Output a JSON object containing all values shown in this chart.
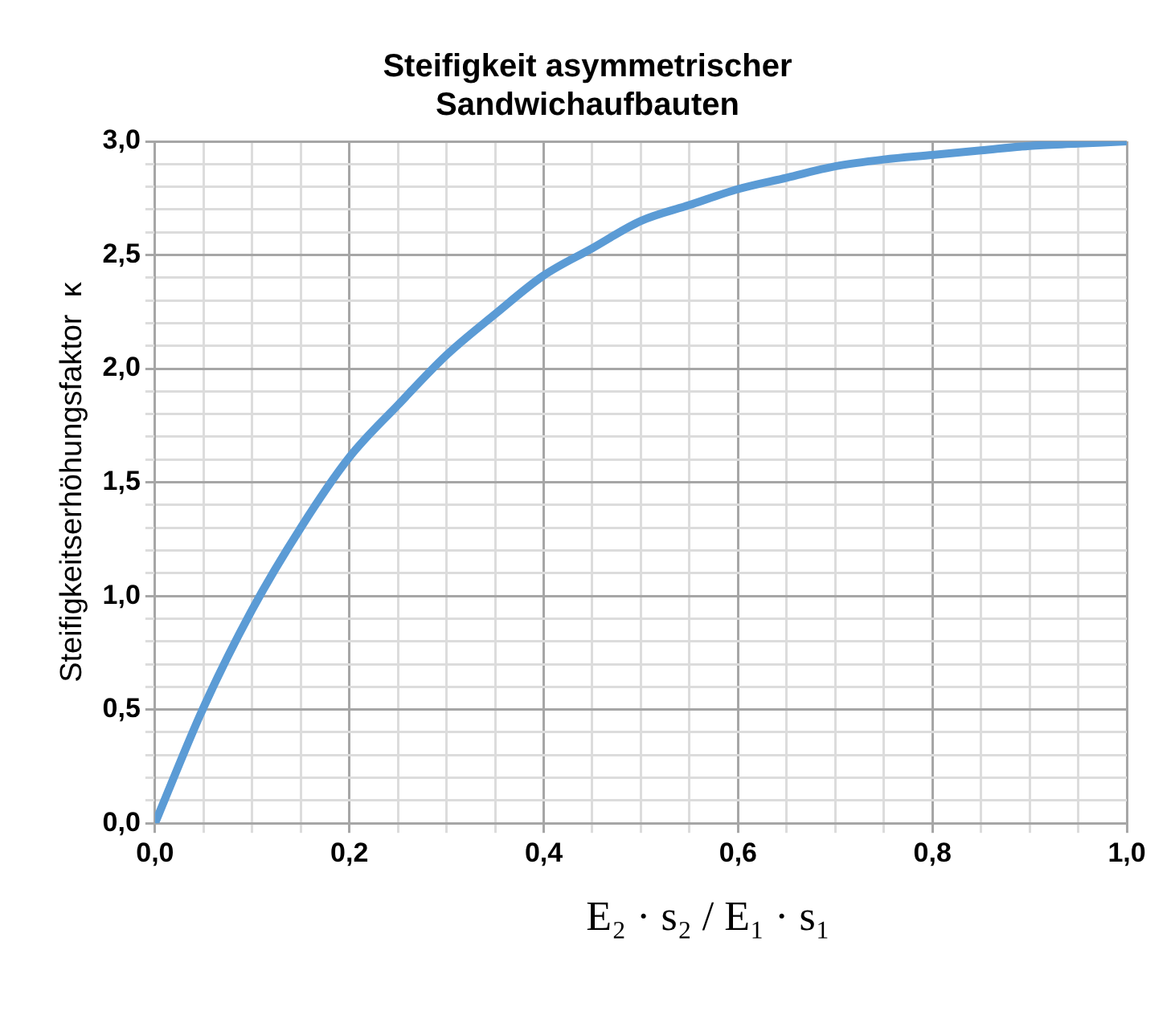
{
  "chart_data": {
    "type": "line",
    "title": [
      "Steifigkeit asymmetrischer",
      "Sandwichaufbauten"
    ],
    "xlabel": "E₂ · s₂ / E₁ · s₁",
    "ylabel": "Steifigkeitserhöhungsfaktor  κ",
    "x": [
      0,
      0.05,
      0.1,
      0.15,
      0.2,
      0.25,
      0.3,
      0.35,
      0.4,
      0.45,
      0.5,
      0.55,
      0.6,
      0.65,
      0.7,
      0.75,
      0.8,
      0.85,
      0.9,
      0.95,
      1.0
    ],
    "series": [
      {
        "color": "#5b9bd5",
        "values": [
          0,
          0.51,
          0.94,
          1.3,
          1.61,
          1.84,
          2.06,
          2.24,
          2.41,
          2.53,
          2.65,
          2.72,
          2.79,
          2.84,
          2.89,
          2.92,
          2.94,
          2.96,
          2.98,
          2.99,
          3.0
        ]
      }
    ],
    "xlim": [
      0,
      1
    ],
    "ylim": [
      0,
      3
    ],
    "xticks": [
      {
        "value": 0,
        "label": "0,0"
      },
      {
        "value": 0.05,
        "label": null
      },
      {
        "value": 0.1,
        "label": null
      },
      {
        "value": 0.15,
        "label": null
      },
      {
        "value": 0.2,
        "label": "0,2"
      },
      {
        "value": 0.25,
        "label": null
      },
      {
        "value": 0.3,
        "label": null
      },
      {
        "value": 0.35,
        "label": null
      },
      {
        "value": 0.4,
        "label": "0,4"
      },
      {
        "value": 0.45,
        "label": null
      },
      {
        "value": 0.5,
        "label": null
      },
      {
        "value": 0.55,
        "label": null
      },
      {
        "value": 0.6,
        "label": "0,6"
      },
      {
        "value": 0.65,
        "label": null
      },
      {
        "value": 0.7,
        "label": null
      },
      {
        "value": 0.75,
        "label": null
      },
      {
        "value": 0.8,
        "label": "0,8"
      },
      {
        "value": 0.85,
        "label": null
      },
      {
        "value": 0.9,
        "label": null
      },
      {
        "value": 0.95,
        "label": null
      },
      {
        "value": 1,
        "label": "1,0"
      }
    ],
    "yticks": [
      {
        "value": 0,
        "label": "0,0"
      },
      {
        "value": 0.1,
        "label": null
      },
      {
        "value": 0.2,
        "label": null
      },
      {
        "value": 0.3,
        "label": null
      },
      {
        "value": 0.4,
        "label": null
      },
      {
        "value": 0.5,
        "label": "0,5"
      },
      {
        "value": 0.6,
        "label": null
      },
      {
        "value": 0.7,
        "label": null
      },
      {
        "value": 0.8,
        "label": null
      },
      {
        "value": 0.9,
        "label": null
      },
      {
        "value": 1,
        "label": "1,0"
      },
      {
        "value": 1.1,
        "label": null
      },
      {
        "value": 1.2,
        "label": null
      },
      {
        "value": 1.3,
        "label": null
      },
      {
        "value": 1.4,
        "label": null
      },
      {
        "value": 1.5,
        "label": "1,5"
      },
      {
        "value": 1.6,
        "label": null
      },
      {
        "value": 1.7,
        "label": null
      },
      {
        "value": 1.8,
        "label": null
      },
      {
        "value": 1.9,
        "label": null
      },
      {
        "value": 2,
        "label": "2,0"
      },
      {
        "value": 2.1,
        "label": null
      },
      {
        "value": 2.2,
        "label": null
      },
      {
        "value": 2.3,
        "label": null
      },
      {
        "value": 2.4,
        "label": null
      },
      {
        "value": 2.5,
        "label": "2,5"
      },
      {
        "value": 2.6,
        "label": null
      },
      {
        "value": 2.7,
        "label": null
      },
      {
        "value": 2.8,
        "label": null
      },
      {
        "value": 2.9,
        "label": null
      },
      {
        "value": 3,
        "label": "3,0"
      }
    ],
    "grid": true,
    "legend": false,
    "marker": "none",
    "line_style": "solid"
  }
}
